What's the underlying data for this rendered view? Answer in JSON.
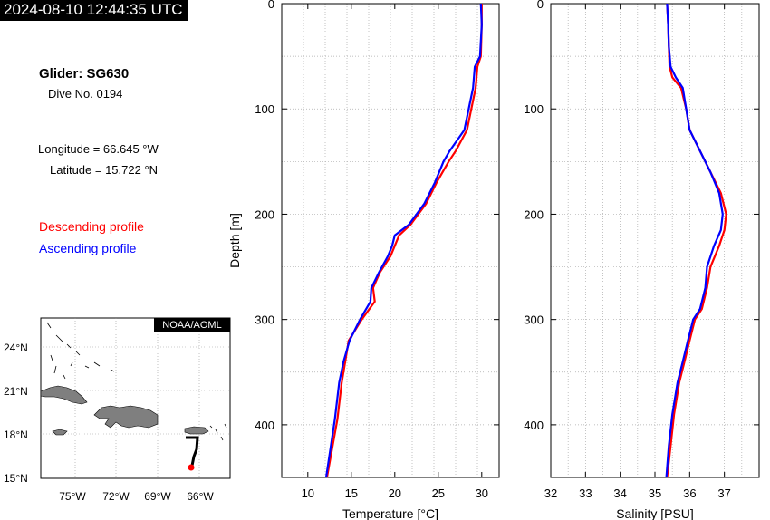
{
  "header": {
    "timestamp": "2024-08-10 12:44:35 UTC",
    "glider": "Glider: SG630",
    "dive": "Dive No. 0194",
    "longitude": "Longitude = 66.645 °W",
    "latitude": "Latitude = 15.722 °N",
    "legend_descending": "Descending profile",
    "legend_ascending": "Ascending profile",
    "color_descending": "#ff0000",
    "color_ascending": "#0000ff"
  },
  "chart_data": [
    {
      "type": "line",
      "xlabel": "Temperature [°C]",
      "ylabel": "Depth [m]",
      "xlim": [
        7,
        32
      ],
      "ylim": [
        450,
        0
      ],
      "xticks": [
        10,
        15,
        20,
        25,
        30
      ],
      "yticks": [
        0,
        100,
        200,
        300,
        400
      ],
      "grid": true,
      "series": [
        {
          "name": "Descending profile",
          "color": "#ff0000",
          "x": [
            30.0,
            30.0,
            29.9,
            29.5,
            29.3,
            28.8,
            28.3,
            27.0,
            26.2,
            24.8,
            23.6,
            21.8,
            20.5,
            20.0,
            19.5,
            18.3,
            17.5,
            17.7,
            16.2,
            14.7,
            14.3,
            13.9,
            13.4,
            12.2
          ],
          "y": [
            0,
            20,
            50,
            60,
            80,
            100,
            120,
            140,
            150,
            170,
            190,
            210,
            220,
            230,
            240,
            255,
            270,
            283,
            300,
            320,
            340,
            360,
            395,
            450
          ]
        },
        {
          "name": "Ascending profile",
          "color": "#0000ff",
          "x": [
            29.9,
            30.0,
            29.8,
            29.2,
            29.0,
            28.5,
            28.0,
            26.3,
            25.6,
            24.6,
            23.4,
            21.6,
            20.0,
            19.7,
            19.2,
            18.2,
            17.3,
            17.2,
            16.0,
            14.8,
            14.1,
            13.6,
            13.1,
            12.1
          ],
          "y": [
            0,
            20,
            50,
            60,
            80,
            100,
            120,
            140,
            150,
            170,
            190,
            210,
            220,
            230,
            240,
            255,
            270,
            283,
            300,
            320,
            340,
            360,
            395,
            450
          ]
        }
      ]
    },
    {
      "type": "line",
      "xlabel": "Salinity [PSU]",
      "ylabel": "",
      "xlim": [
        32,
        38
      ],
      "ylim": [
        450,
        0
      ],
      "xticks": [
        32,
        33,
        34,
        35,
        36,
        37
      ],
      "yticks": [
        0,
        100,
        200,
        300,
        400
      ],
      "grid": true,
      "series": [
        {
          "name": "Descending profile",
          "color": "#ff0000",
          "x": [
            35.35,
            35.38,
            35.4,
            35.42,
            35.5,
            35.75,
            35.9,
            36.0,
            36.3,
            36.6,
            36.9,
            37.05,
            37.0,
            36.85,
            36.6,
            36.5,
            36.35,
            36.15,
            36.0,
            35.85,
            35.7,
            35.55,
            35.45,
            35.35
          ],
          "y": [
            0,
            20,
            40,
            60,
            70,
            80,
            100,
            120,
            140,
            160,
            180,
            200,
            215,
            230,
            250,
            270,
            290,
            300,
            320,
            340,
            360,
            390,
            420,
            450
          ]
        },
        {
          "name": "Ascending profile",
          "color": "#0000ff",
          "x": [
            35.35,
            35.38,
            35.4,
            35.45,
            35.6,
            35.8,
            35.9,
            36.0,
            36.3,
            36.6,
            36.85,
            36.95,
            36.9,
            36.7,
            36.5,
            36.45,
            36.3,
            36.1,
            35.95,
            35.8,
            35.65,
            35.5,
            35.4,
            35.33
          ],
          "y": [
            0,
            20,
            40,
            60,
            70,
            80,
            100,
            120,
            140,
            160,
            180,
            200,
            215,
            230,
            250,
            270,
            290,
            300,
            320,
            340,
            360,
            390,
            420,
            450
          ]
        }
      ]
    }
  ],
  "map": {
    "credit": "NOAA/AOML",
    "lat_ticks": [
      "24°N",
      "21°N",
      "18°N",
      "15°N"
    ],
    "lon_ticks": [
      "75°W",
      "72°W",
      "69°W",
      "66°W"
    ]
  }
}
